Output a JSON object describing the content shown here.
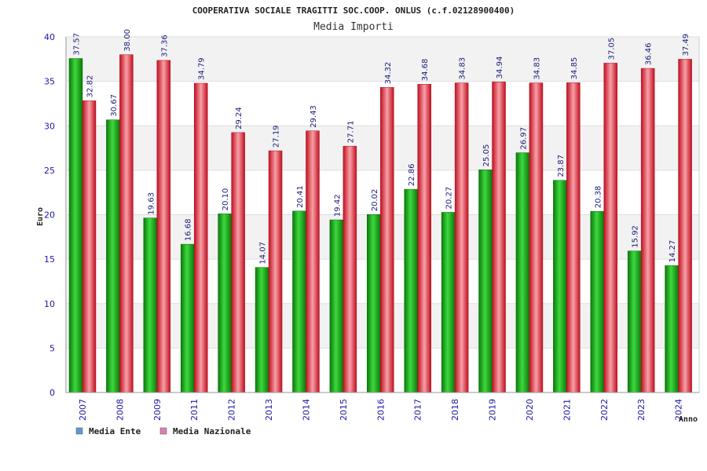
{
  "chart_data": {
    "type": "bar",
    "title": "COOPERATIVA SOCIALE TRAGITTI SOC.COOP. ONLUS (c.f.02128900400)",
    "subtitle": "Media Importi",
    "xlabel": "Anno",
    "ylabel": "Euro",
    "ylim": [
      0,
      40
    ],
    "yticks": [
      0,
      5,
      10,
      15,
      20,
      25,
      30,
      35,
      40
    ],
    "grid": true,
    "legend_position": "bottom-left",
    "categories": [
      "2007",
      "2008",
      "2009",
      "2011",
      "2012",
      "2013",
      "2014",
      "2015",
      "2016",
      "2017",
      "2018",
      "2019",
      "2020",
      "2021",
      "2022",
      "2023",
      "2024"
    ],
    "series": [
      {
        "name": "Media Ente",
        "color": "#1aa31a",
        "legend_color": "#5b9bd5",
        "values": [
          37.57,
          30.67,
          19.63,
          16.68,
          20.1,
          14.07,
          20.41,
          19.42,
          20.02,
          22.86,
          20.27,
          25.05,
          26.97,
          23.87,
          20.38,
          15.92,
          14.27
        ],
        "labels": [
          "37.57",
          "30.67",
          "19.63",
          "16.68",
          "20.10",
          "14.07",
          "20.41",
          "19.42",
          "20.02",
          "22.86",
          "20.27",
          "25.05",
          "26.97",
          "23.87",
          "20.38",
          "15.92",
          "14.27"
        ]
      },
      {
        "name": "Media Nazionale",
        "color": "#e8283a",
        "legend_color": "#d982b3",
        "values": [
          32.82,
          38.0,
          37.36,
          34.79,
          29.24,
          27.19,
          29.43,
          27.71,
          34.32,
          34.68,
          34.83,
          34.94,
          34.83,
          34.85,
          37.05,
          36.46,
          37.49
        ],
        "labels": [
          "32.82",
          "38.00",
          "37.36",
          "34.79",
          "29.24",
          "27.19",
          "29.43",
          "27.71",
          "34.32",
          "34.68",
          "34.83",
          "34.94",
          "34.83",
          "34.85",
          "37.05",
          "36.46",
          "37.49"
        ]
      }
    ]
  }
}
